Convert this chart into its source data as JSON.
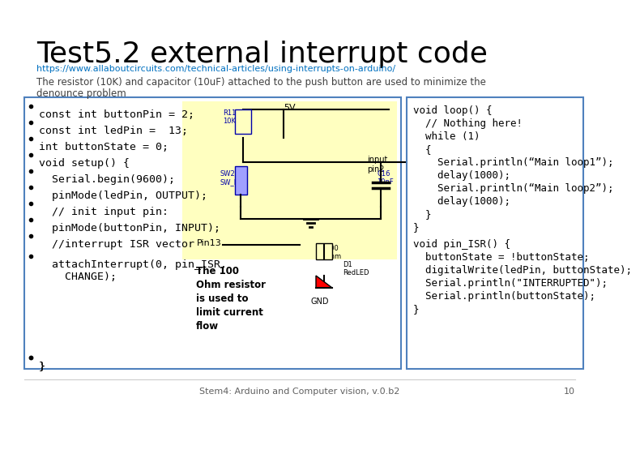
{
  "title": "Test5.2 external interrupt code",
  "url": "https://www.allaboutcircuits.com/technical-articles/using-interrupts-on-arduino/",
  "subtitle1": "The resistor (10K) and capacitor (10uF) attached to the push button are used to minimize the",
  "subtitle2": "denounce problem",
  "left_bullets": [
    "const int buttonPin = 2;",
    "const int ledPin =  13;",
    "int buttonState = 0;",
    "void setup() {",
    "  Serial.begin(9600);",
    "  pinMode(ledPin, OUTPUT);",
    "  // init input pin:",
    "  pinMode(buttonPin, INPUT);",
    "  //interrupt ISR vector",
    "  attachInterrupt(0, pin_ISR,\n    CHANGE);",
    "}"
  ],
  "right_code": [
    "void loop() {",
    "  // Nothing here!",
    "  while (1)",
    "  {",
    "    Serial.println(“Main loop1”);",
    "    delay(1000);",
    "    Serial.println(“Main loop2”);",
    "    delay(1000);",
    "  }",
    "}",
    "void pin_ISR() {",
    "  buttonState = !buttonState;",
    "  digitalWrite(ledPin, buttonState);",
    "  Serial.println(\"INTERRUPTED\");",
    "  Serial.println(buttonState);",
    "}"
  ],
  "caption": "The 100\nOhm resistor\nis used to\nlimit current\nflow",
  "footer": "Stem4: Arduino and Computer vision, v.0.b2",
  "page_num": "10",
  "bg_color": "#ffffff",
  "title_color": "#000000",
  "url_color": "#0070c0",
  "subtitle_color": "#404040",
  "left_box_border": "#4f81bd",
  "right_box_border": "#4f81bd",
  "circuit_bg": "#ffffc0",
  "code_font_size": 9.5,
  "title_font_size": 26
}
